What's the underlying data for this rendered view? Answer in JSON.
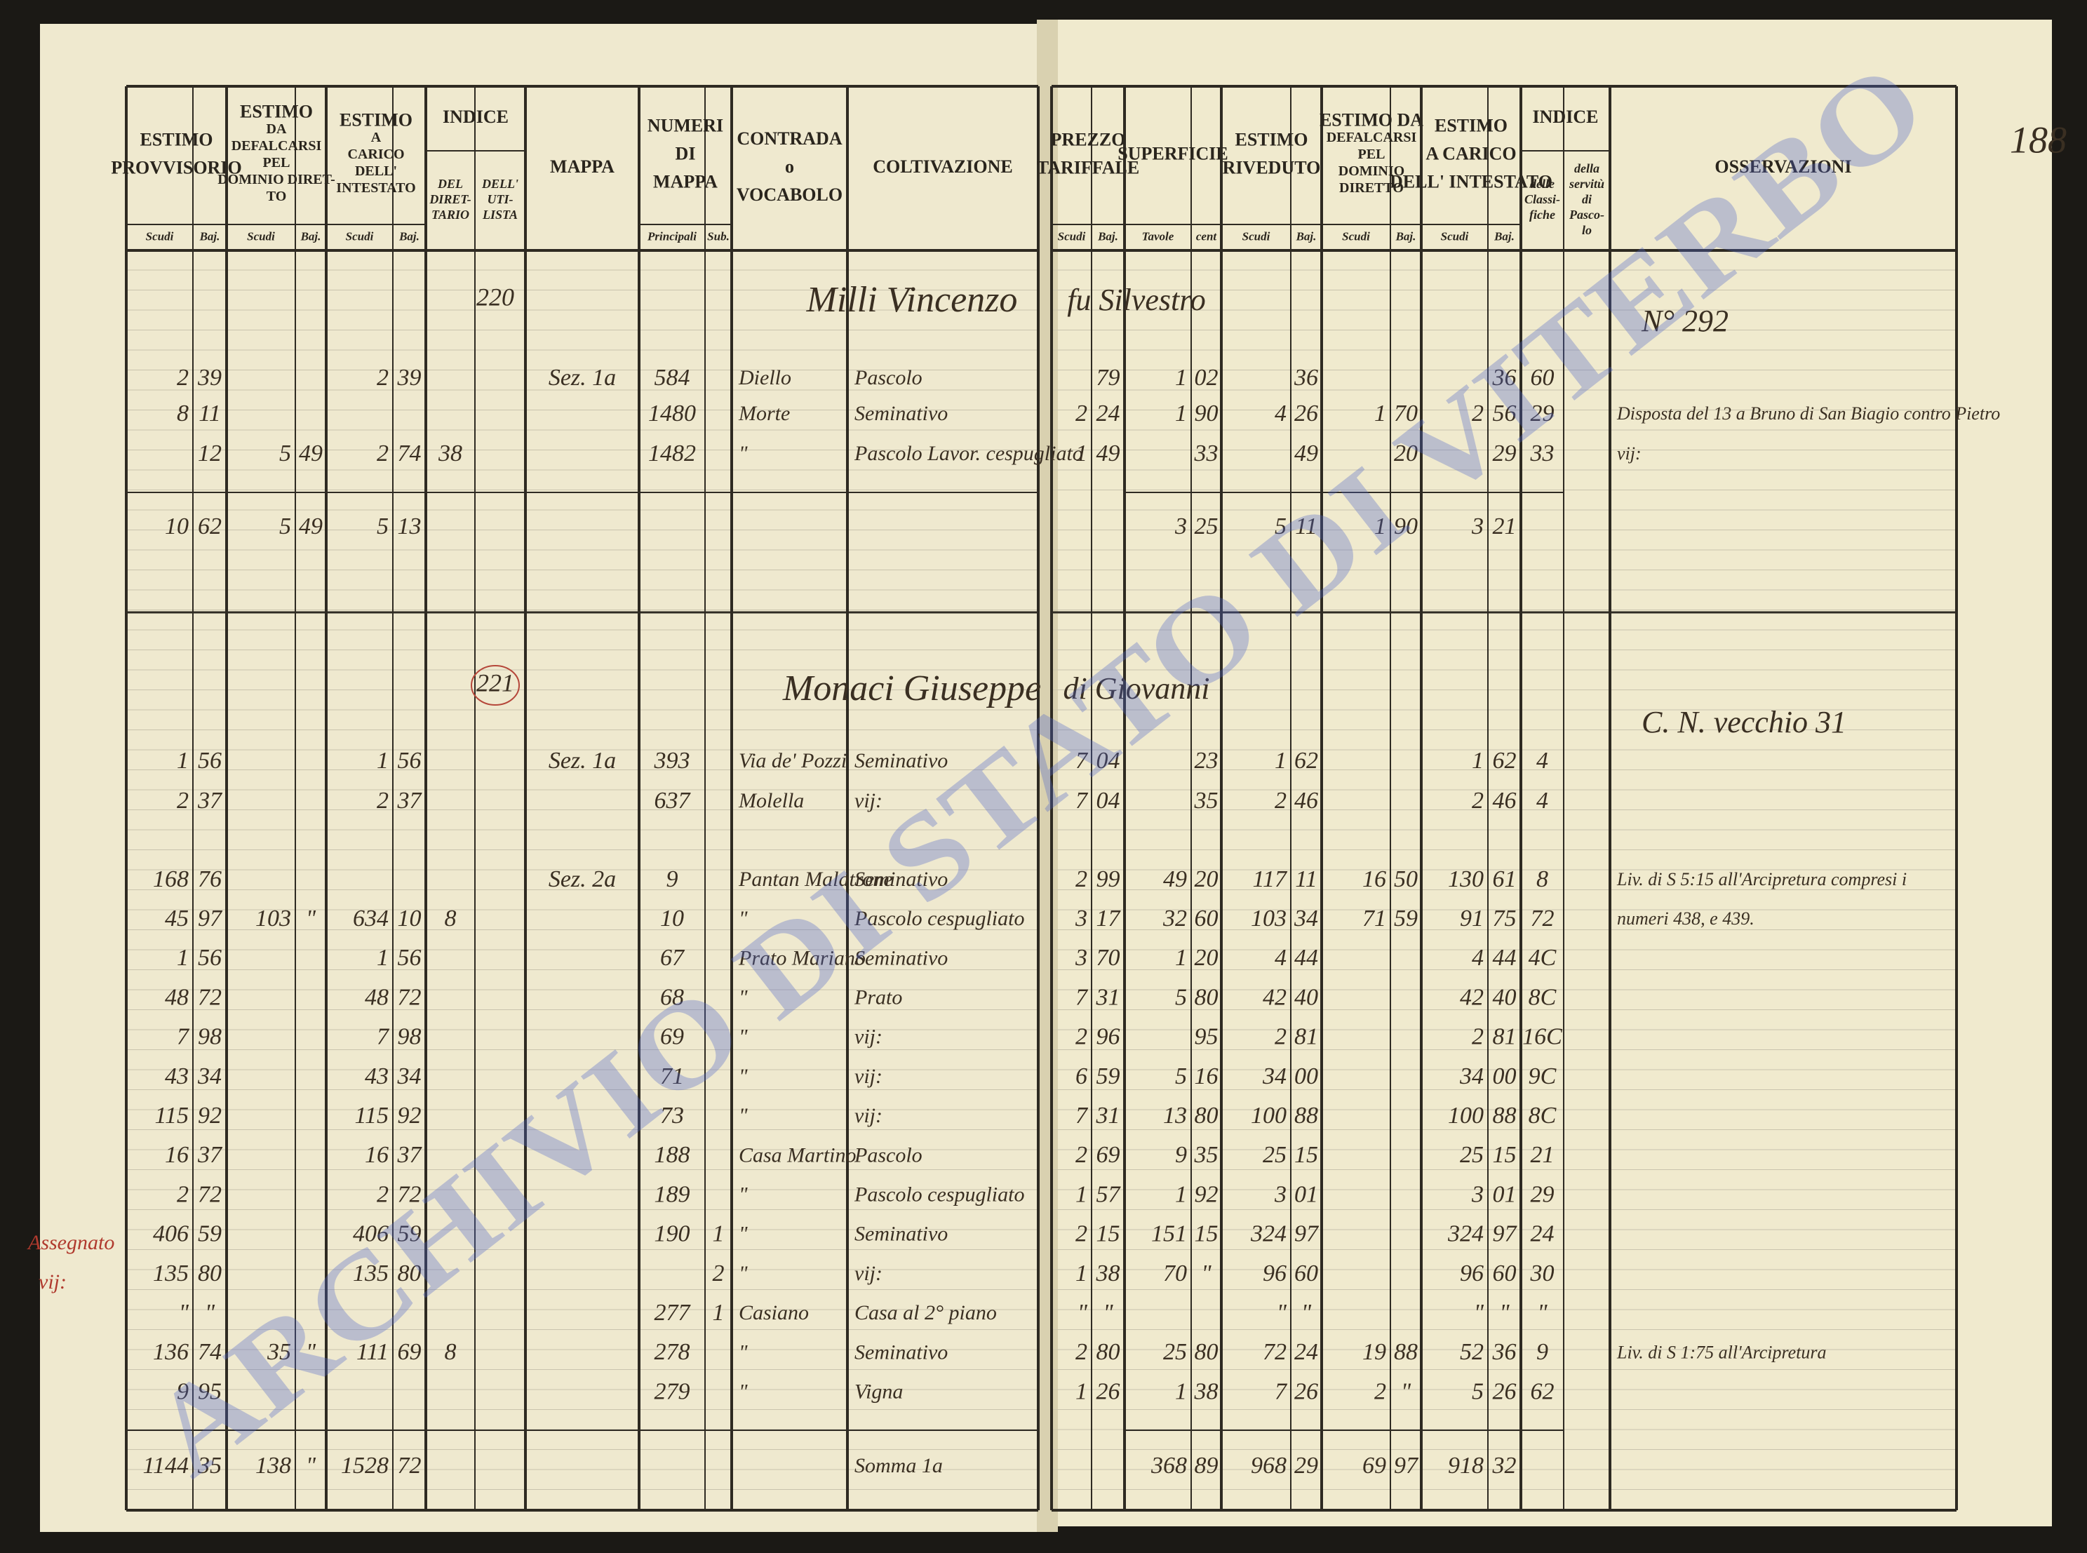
{
  "page_number": "188",
  "watermark": "ARCHIVIO DI STATO DI VITERBO",
  "margin_note": [
    "Assegnato",
    "vij:"
  ],
  "left_header": {
    "groups": [
      {
        "title": [
          "ESTIMO",
          "PROVVISORIO"
        ],
        "subs": [
          [
            "Scudi"
          ],
          [
            "Baj."
          ]
        ]
      },
      {
        "title": [
          "ESTIMO",
          "DA",
          "DEFALCARSI",
          "PEL",
          "DOMINIO DIRET-",
          "TO"
        ],
        "subs": [
          [
            "Scudi"
          ],
          [
            "Baj."
          ]
        ]
      },
      {
        "title": [
          "ESTIMO",
          "A",
          "CARICO",
          "DELL'",
          "INTESTATO"
        ],
        "subs": [
          [
            "Scudi"
          ],
          [
            "Baj."
          ]
        ]
      },
      {
        "title": [
          "INDICE"
        ],
        "subs": [
          [
            "DEL",
            "DIRET-",
            "TARIO"
          ],
          [
            "DELL'",
            "UTI-",
            "LISTA"
          ]
        ]
      },
      {
        "title": [
          "MAPPA"
        ],
        "subs": []
      },
      {
        "title": [
          "NUMERI",
          "DI",
          "MAPPA"
        ],
        "subs": [
          [
            "Principali"
          ],
          [
            "Sub."
          ]
        ]
      },
      {
        "title": [
          "CONTRADA",
          "o",
          "VOCABOLO"
        ],
        "subs": []
      },
      {
        "title": [
          "COLTIVAZIONE"
        ],
        "subs": []
      }
    ]
  },
  "right_header": {
    "groups": [
      {
        "title": [
          "PREZZO",
          "TARIFFALE"
        ],
        "subs": [
          [
            "Scudi"
          ],
          [
            "Baj."
          ]
        ]
      },
      {
        "title": [
          "SUPERFICIE"
        ],
        "subs": [
          [
            "Tavole"
          ],
          [
            "cent"
          ]
        ]
      },
      {
        "title": [
          "ESTIMO",
          "RIVEDUTO"
        ],
        "subs": [
          [
            "Scudi"
          ],
          [
            "Baj."
          ]
        ]
      },
      {
        "title": [
          "ESTIMO DA",
          "DEFALCARSI",
          "PEL",
          "DOMINIO",
          "DIRETTO"
        ],
        "subs": [
          [
            "Scudi"
          ],
          [
            "Baj."
          ]
        ]
      },
      {
        "title": [
          "ESTIMO",
          "A CARICO",
          "DELL' INTESTATO"
        ],
        "subs": [
          [
            "Scudi"
          ],
          [
            "Baj."
          ]
        ]
      },
      {
        "title": [
          "INDICE"
        ],
        "subs": [
          [
            "delle",
            "Classi-",
            "fiche"
          ],
          [
            "della",
            "servitù",
            "di",
            "Pasco-",
            "lo"
          ]
        ]
      },
      {
        "title": [
          "OSSERVAZIONI"
        ],
        "subs": []
      }
    ]
  },
  "sections": [
    {
      "index": "220",
      "owner": "Milli Vincenzo",
      "father": "fu Silvestro",
      "note": "N° 292",
      "rows": [
        [
          "2",
          "39",
          null,
          null,
          "2",
          "39",
          null,
          null,
          "Sez. 1a",
          "584",
          null,
          "Diello",
          "Pascolo",
          null,
          "79",
          "1",
          "02",
          null,
          "36",
          null,
          null,
          null,
          "36",
          "60",
          null,
          null
        ],
        [
          "8",
          "11",
          null,
          null,
          null,
          null,
          null,
          null,
          null,
          "1480",
          null,
          "Morte",
          "Seminativo",
          "2",
          "24",
          "1",
          "90",
          "4",
          "26",
          "1",
          "70",
          "2",
          "56",
          "29",
          null,
          "Disposta del 13 a Bruno di San Biagio contro Pietro"
        ],
        [
          null,
          "12",
          "5",
          "49",
          "2",
          "74",
          "38",
          null,
          null,
          "1482",
          null,
          "\"",
          "Pascolo Lavor. cespugliato",
          "1",
          "49",
          null,
          "33",
          null,
          "49",
          null,
          "20",
          null,
          "29",
          "33",
          null,
          "vij:"
        ]
      ],
      "total": [
        "10",
        "62",
        "5",
        "49",
        "5",
        "13",
        null,
        null,
        null,
        null,
        null,
        null,
        null,
        null,
        null,
        "3",
        "25",
        "5",
        "11",
        "1",
        "90",
        "3",
        "21",
        null,
        null,
        null
      ]
    },
    {
      "index": "221",
      "owner": "Monaci Giuseppe",
      "father": "di Giovanni",
      "note": "C. N. vecchio 31",
      "rows": [
        [
          "1",
          "56",
          null,
          null,
          "1",
          "56",
          null,
          null,
          "Sez. 1a",
          "393",
          null,
          "Via de' Pozzi",
          "Seminativo",
          "7",
          "04",
          null,
          "23",
          "1",
          "62",
          null,
          null,
          "1",
          "62",
          "4",
          null,
          null
        ],
        [
          "2",
          "37",
          null,
          null,
          "2",
          "37",
          null,
          null,
          null,
          "637",
          null,
          "Molella",
          "vij:",
          "7",
          "04",
          null,
          "35",
          "2",
          "46",
          null,
          null,
          "2",
          "46",
          "4",
          null,
          null
        ],
        [
          "168",
          "76",
          null,
          null,
          null,
          null,
          null,
          null,
          "Sez. 2a",
          "9",
          null,
          "Pantan Malatrone",
          "Seminativo",
          "2",
          "99",
          "49",
          "20",
          "117",
          "11",
          "16",
          "50",
          "130",
          "61",
          "8",
          null,
          "Liv. di S 5:15 all'Arcipretura compresi i"
        ],
        [
          "45",
          "97",
          "103",
          "\"",
          "634",
          "10",
          "8",
          null,
          null,
          "10",
          null,
          "\"",
          "Pascolo cespugliato",
          "3",
          "17",
          "32",
          "60",
          "103",
          "34",
          "71",
          "59",
          "91",
          "75",
          "72",
          null,
          "numeri 438, e 439."
        ],
        [
          "1",
          "56",
          null,
          null,
          "1",
          "56",
          null,
          null,
          null,
          "67",
          null,
          "Prato Mariano",
          "Seminativo",
          "3",
          "70",
          "1",
          "20",
          "4",
          "44",
          null,
          null,
          "4",
          "44",
          "4C",
          null,
          null
        ],
        [
          "48",
          "72",
          null,
          null,
          "48",
          "72",
          null,
          null,
          null,
          "68",
          null,
          "\"",
          "Prato",
          "7",
          "31",
          "5",
          "80",
          "42",
          "40",
          null,
          null,
          "42",
          "40",
          "8C",
          null,
          null
        ],
        [
          "7",
          "98",
          null,
          null,
          "7",
          "98",
          null,
          null,
          null,
          "69",
          null,
          "\"",
          "vij:",
          "2",
          "96",
          null,
          "95",
          "2",
          "81",
          null,
          null,
          "2",
          "81",
          "16C",
          null,
          null
        ],
        [
          "43",
          "34",
          null,
          null,
          "43",
          "34",
          null,
          null,
          null,
          "71",
          null,
          "\"",
          "vij:",
          "6",
          "59",
          "5",
          "16",
          "34",
          "00",
          null,
          null,
          "34",
          "00",
          "9C",
          null,
          null
        ],
        [
          "115",
          "92",
          null,
          null,
          "115",
          "92",
          null,
          null,
          null,
          "73",
          null,
          "\"",
          "vij:",
          "7",
          "31",
          "13",
          "80",
          "100",
          "88",
          null,
          null,
          "100",
          "88",
          "8C",
          null,
          null
        ],
        [
          "16",
          "37",
          null,
          null,
          "16",
          "37",
          null,
          null,
          null,
          "188",
          null,
          "Casa Martino",
          "Pascolo",
          "2",
          "69",
          "9",
          "35",
          "25",
          "15",
          null,
          null,
          "25",
          "15",
          "21",
          null,
          null
        ],
        [
          "2",
          "72",
          null,
          null,
          "2",
          "72",
          null,
          null,
          null,
          "189",
          null,
          "\"",
          "Pascolo cespugliato",
          "1",
          "57",
          "1",
          "92",
          "3",
          "01",
          null,
          null,
          "3",
          "01",
          "29",
          null,
          null
        ],
        [
          "406",
          "59",
          null,
          null,
          "406",
          "59",
          null,
          null,
          null,
          "190",
          "1",
          "\"",
          "Seminativo",
          "2",
          "15",
          "151",
          "15",
          "324",
          "97",
          null,
          null,
          "324",
          "97",
          "24",
          null,
          null
        ],
        [
          "135",
          "80",
          null,
          null,
          "135",
          "80",
          null,
          null,
          null,
          null,
          "2",
          "\"",
          "vij:",
          "1",
          "38",
          "70",
          "\"",
          "96",
          "60",
          null,
          null,
          "96",
          "60",
          "30",
          null,
          null
        ],
        [
          "\"",
          "\"",
          null,
          null,
          null,
          null,
          null,
          null,
          null,
          "277",
          "1",
          "Casiano",
          "Casa al 2° piano",
          "\"",
          "\"",
          null,
          null,
          "\"",
          "\"",
          null,
          null,
          "\"",
          "\"",
          "\"",
          null,
          null
        ],
        [
          "136",
          "74",
          "35",
          "\"",
          "111",
          "69",
          "8",
          null,
          null,
          "278",
          null,
          "\"",
          "Seminativo",
          "2",
          "80",
          "25",
          "80",
          "72",
          "24",
          "19",
          "88",
          "52",
          "36",
          "9",
          null,
          "Liv. di S 1:75 all'Arcipretura"
        ],
        [
          "9",
          "95",
          null,
          null,
          null,
          null,
          null,
          null,
          null,
          "279",
          null,
          "\"",
          "Vigna",
          "1",
          "26",
          "1",
          "38",
          "7",
          "26",
          "2",
          "\"",
          "5",
          "26",
          "62",
          null,
          null
        ]
      ],
      "total": [
        "1144",
        "35",
        "138",
        "\"",
        "1528",
        "72",
        null,
        null,
        null,
        null,
        null,
        null,
        "Somma 1a",
        null,
        null,
        "368",
        "89",
        "968",
        "29",
        "69",
        "97",
        "918",
        "32",
        null,
        null,
        null
      ]
    }
  ]
}
